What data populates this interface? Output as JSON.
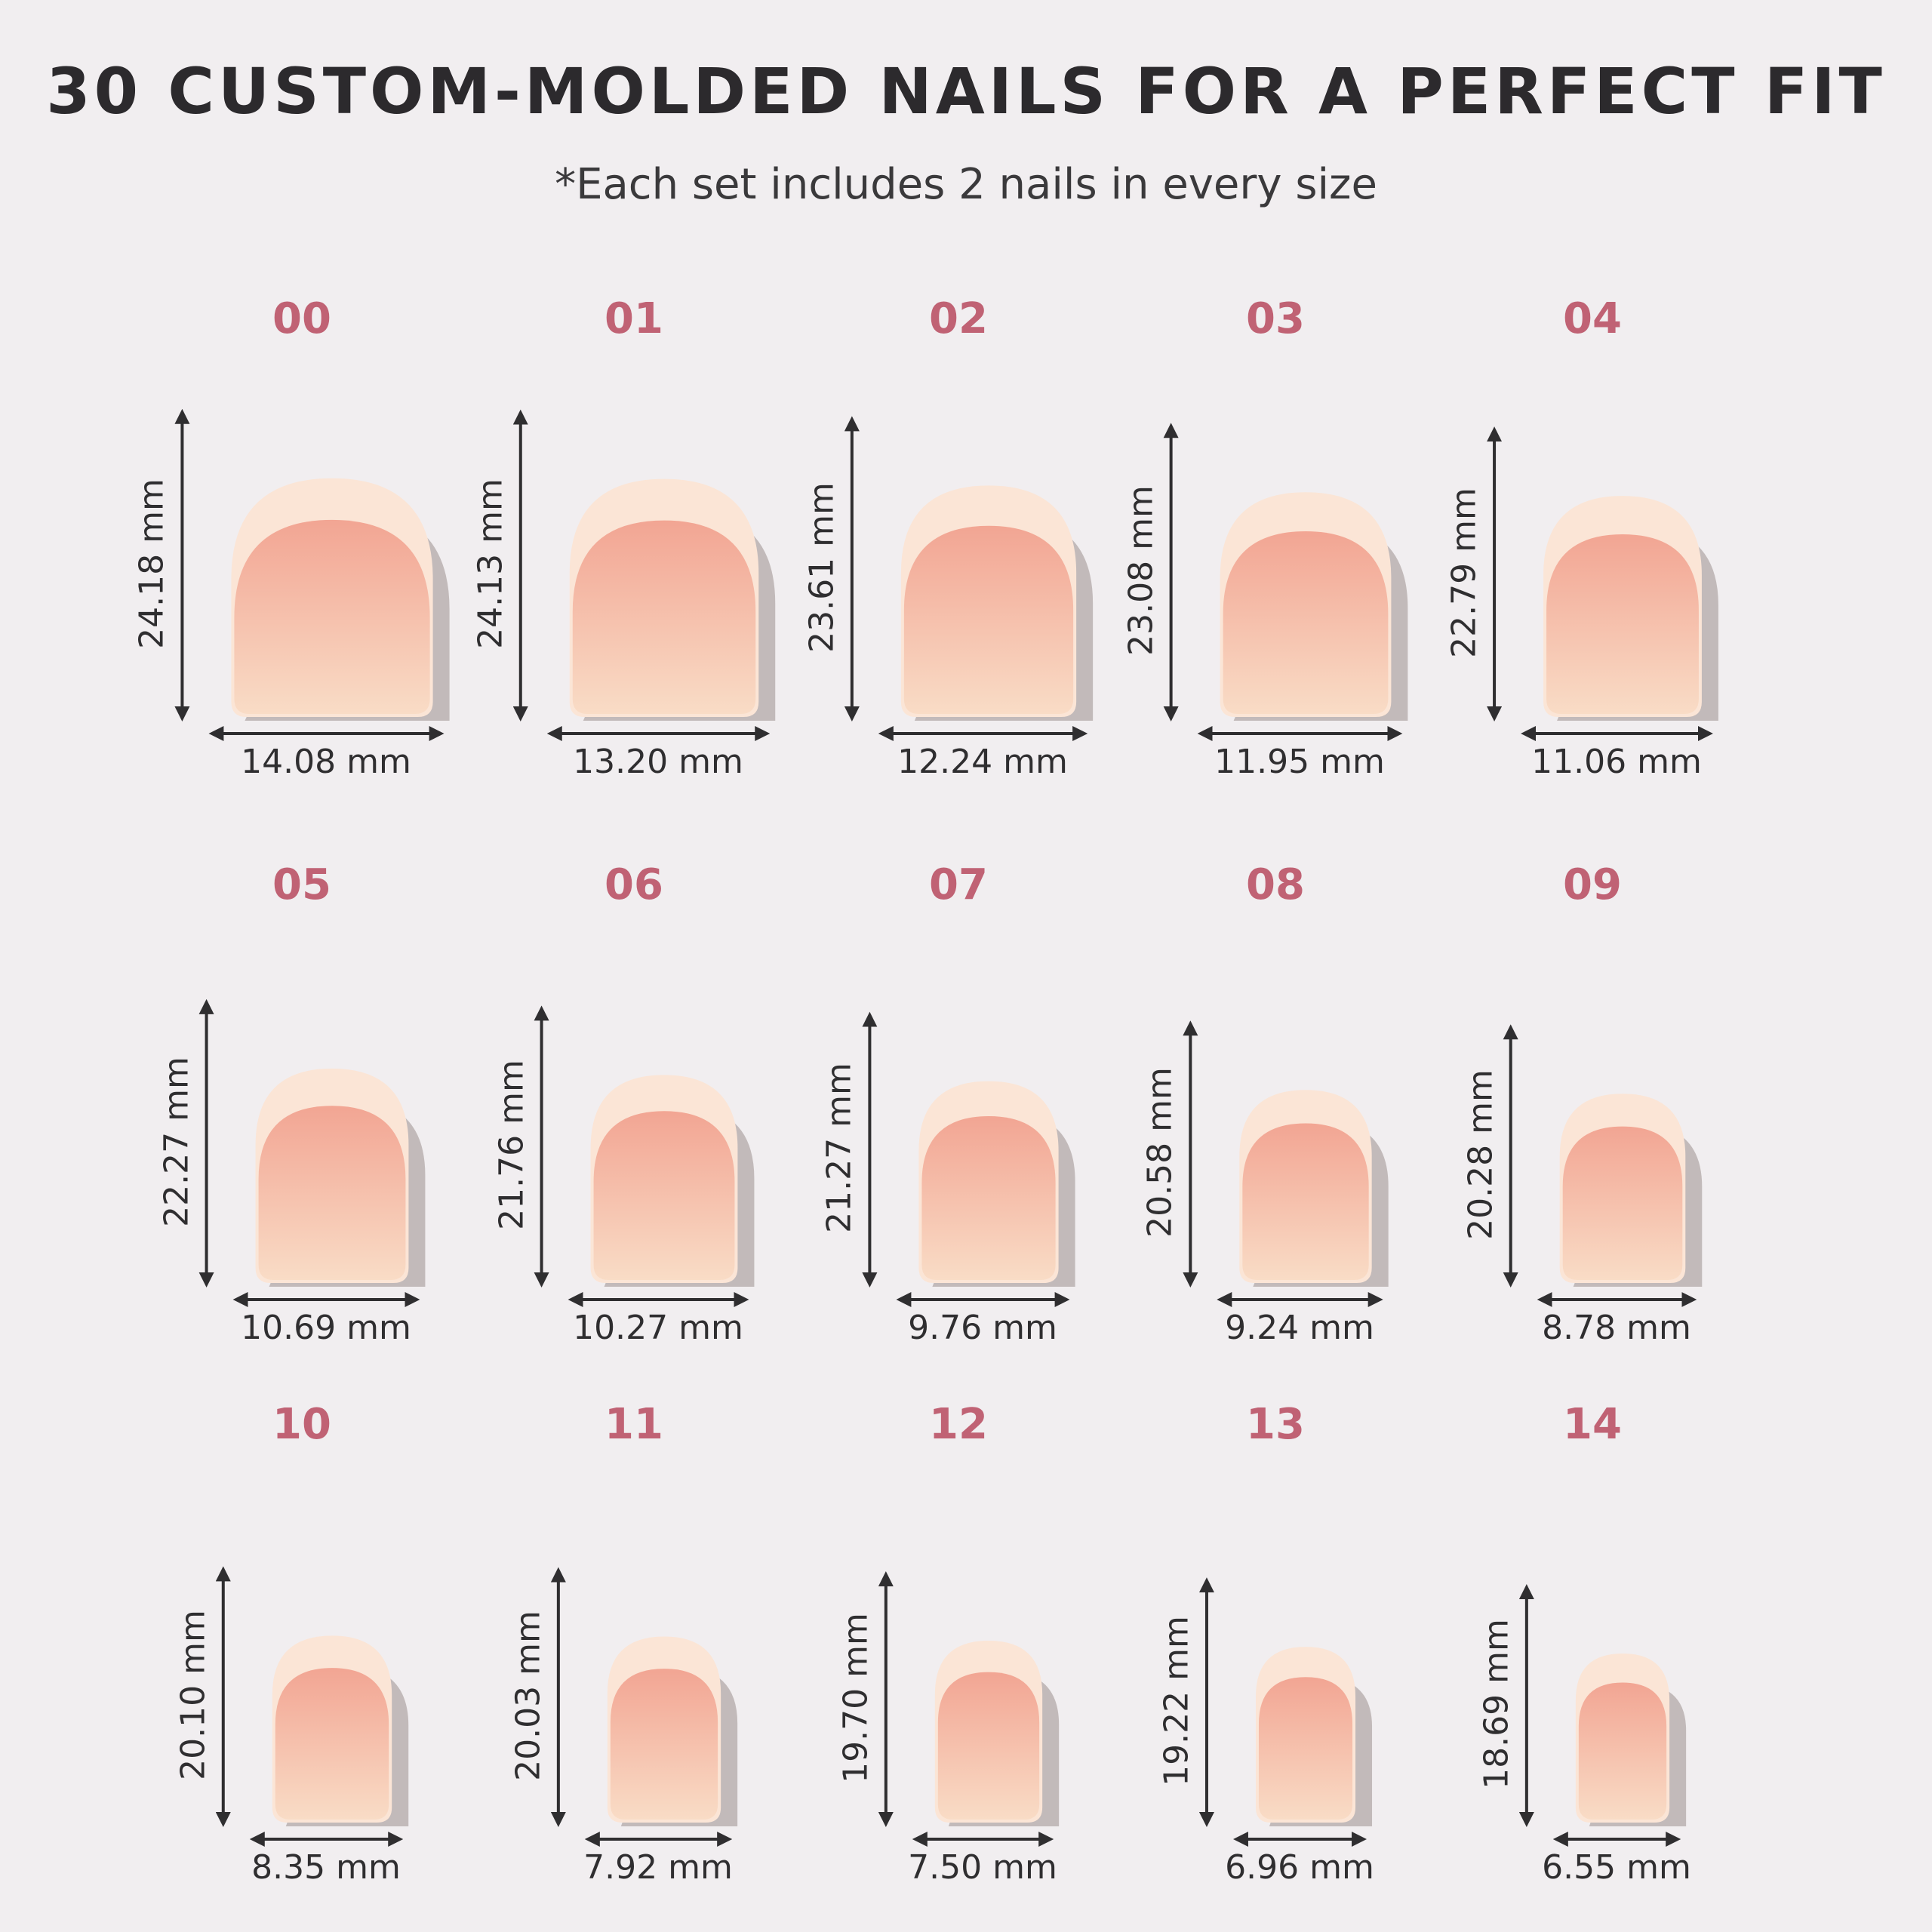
{
  "header": {
    "title": "30 CUSTOM-MOLDED NAILS FOR A PERFECT FIT",
    "subtitle": "*Each set includes 2 nails in every size"
  },
  "colors": {
    "size_label": "#c06274",
    "background": "#f1eef0",
    "nail_tip": "#fbe5d6",
    "nail_bed_top": "#f2a593",
    "nail_bed_bottom": "#f9dcc6",
    "arrow": "#2f2e30"
  },
  "nails": [
    {
      "size": "00",
      "length": "24.18 mm",
      "width": "14.08 mm",
      "length_mm": 24.18,
      "width_mm": 14.08
    },
    {
      "size": "01",
      "length": "24.13 mm",
      "width": "13.20 mm",
      "length_mm": 24.13,
      "width_mm": 13.2
    },
    {
      "size": "02",
      "length": "23.61 mm",
      "width": "12.24 mm",
      "length_mm": 23.61,
      "width_mm": 12.24
    },
    {
      "size": "03",
      "length": "23.08 mm",
      "width": "11.95 mm",
      "length_mm": 23.08,
      "width_mm": 11.95
    },
    {
      "size": "04",
      "length": "22.79 mm",
      "width": "11.06 mm",
      "length_mm": 22.79,
      "width_mm": 11.06
    },
    {
      "size": "05",
      "length": "22.27 mm",
      "width": "10.69 mm",
      "length_mm": 22.27,
      "width_mm": 10.69
    },
    {
      "size": "06",
      "length": "21.76 mm",
      "width": "10.27 mm",
      "length_mm": 21.76,
      "width_mm": 10.27
    },
    {
      "size": "07",
      "length": "21.27 mm",
      "width": "9.76 mm",
      "length_mm": 21.27,
      "width_mm": 9.76
    },
    {
      "size": "08",
      "length": "20.58 mm",
      "width": "9.24 mm",
      "length_mm": 20.58,
      "width_mm": 9.24
    },
    {
      "size": "09",
      "length": "20.28 mm",
      "width": "8.78 mm",
      "length_mm": 20.28,
      "width_mm": 8.78
    },
    {
      "size": "10",
      "length": "20.10 mm",
      "width": "8.35 mm",
      "length_mm": 20.1,
      "width_mm": 8.35
    },
    {
      "size": "11",
      "length": "20.03 mm",
      "width": "7.92 mm",
      "length_mm": 20.03,
      "width_mm": 7.92
    },
    {
      "size": "12",
      "length": "19.70 mm",
      "width": "7.50 mm",
      "length_mm": 19.7,
      "width_mm": 7.5
    },
    {
      "size": "13",
      "length": "19.22 mm",
      "width": "6.96 mm",
      "length_mm": 19.22,
      "width_mm": 6.96
    },
    {
      "size": "14",
      "length": "18.69 mm",
      "width": "6.55 mm",
      "length_mm": 18.69,
      "width_mm": 6.55
    }
  ]
}
